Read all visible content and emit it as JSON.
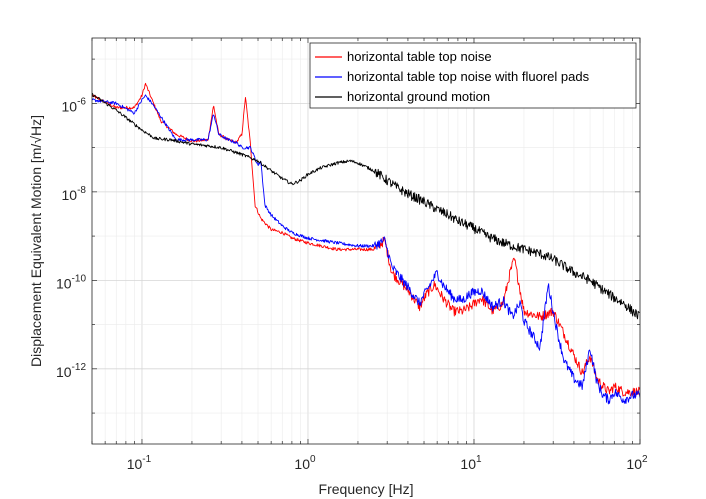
{
  "chart_data": {
    "type": "line",
    "scale": {
      "x": "log",
      "y": "log"
    },
    "xlabel": "Frequency [Hz]",
    "ylabel": "Displacement Equivalent Motion [m/√Hz]",
    "xlim": [
      0.05,
      100
    ],
    "ylim": [
      2e-14,
      3e-05
    ],
    "grid": true,
    "legend_position": "top-right",
    "x_ticks": [
      {
        "value": 0.1,
        "base": "10",
        "exp": "-1"
      },
      {
        "value": 1,
        "base": "10",
        "exp": "0"
      },
      {
        "value": 10,
        "base": "10",
        "exp": "1"
      },
      {
        "value": 100,
        "base": "10",
        "exp": "2"
      }
    ],
    "y_ticks": [
      {
        "value": 1e-12,
        "base": "10",
        "exp": "-12"
      },
      {
        "value": 1e-10,
        "base": "10",
        "exp": "-10"
      },
      {
        "value": 1e-08,
        "base": "10",
        "exp": "-8"
      },
      {
        "value": 1e-06,
        "base": "10",
        "exp": "-6"
      }
    ],
    "series": [
      {
        "name": "horizontal table top noise",
        "color": "#ff0000",
        "x": [
          0.05,
          0.07,
          0.09,
          0.1,
          0.105,
          0.115,
          0.13,
          0.16,
          0.2,
          0.25,
          0.27,
          0.29,
          0.33,
          0.37,
          0.4,
          0.42,
          0.45,
          0.48,
          0.52,
          0.6,
          0.7,
          0.8,
          1.0,
          1.5,
          2.0,
          2.5,
          2.9,
          3.2,
          4.0,
          4.7,
          5.2,
          5.8,
          6.5,
          7.5,
          8.5,
          9.5,
          11,
          13,
          15,
          16.5,
          17.5,
          18.5,
          20,
          25,
          30,
          35,
          40,
          45,
          50,
          55,
          60,
          65,
          70,
          80,
          90,
          100
        ],
        "y": [
          1.5e-06,
          8e-07,
          8e-07,
          1.5e-06,
          2.8e-06,
          1.2e-06,
          4e-07,
          2e-07,
          1.4e-07,
          1.5e-07,
          9e-07,
          2e-07,
          1.5e-07,
          1.3e-07,
          2e-07,
          1.4e-06,
          1.2e-07,
          5e-09,
          2.5e-09,
          1.4e-09,
          1.2e-09,
          9e-10,
          7e-10,
          5e-10,
          5e-10,
          5e-10,
          8e-10,
          1.5e-10,
          6e-11,
          2.5e-11,
          5e-11,
          8e-11,
          4e-11,
          2e-11,
          2e-11,
          2.5e-11,
          4e-11,
          2e-11,
          3e-11,
          1.5e-10,
          3e-10,
          1e-10,
          2e-11,
          1.5e-11,
          2e-11,
          6e-12,
          2e-12,
          8e-13,
          2e-12,
          6e-13,
          4e-13,
          3e-13,
          4e-13,
          3e-13,
          3e-13,
          3e-13
        ]
      },
      {
        "name": "horizontal table top noise with fluorel pads",
        "color": "#0000ff",
        "x": [
          0.05,
          0.07,
          0.09,
          0.1,
          0.105,
          0.115,
          0.13,
          0.16,
          0.2,
          0.25,
          0.27,
          0.29,
          0.33,
          0.37,
          0.4,
          0.45,
          0.5,
          0.52,
          0.55,
          0.6,
          0.7,
          0.8,
          1.0,
          1.5,
          2.0,
          2.5,
          2.9,
          3.2,
          4.0,
          4.7,
          5.2,
          6.0,
          6.5,
          7.5,
          8.5,
          9.5,
          11,
          13,
          15,
          17,
          19,
          20,
          25,
          28,
          30,
          32,
          35,
          40,
          45,
          50,
          55,
          60,
          65,
          70,
          80,
          90,
          100
        ],
        "y": [
          1.2e-06,
          1e-06,
          6e-07,
          1.2e-06,
          1.5e-06,
          1e-06,
          5e-07,
          1.5e-07,
          1.5e-07,
          1.5e-07,
          6e-07,
          2e-07,
          1.5e-07,
          1.3e-07,
          1e-07,
          1e-07,
          4e-08,
          5e-08,
          5e-09,
          3e-09,
          1.7e-09,
          1.2e-09,
          9e-10,
          7e-10,
          6e-10,
          6e-10,
          8e-10,
          2e-10,
          7e-11,
          3e-11,
          6e-11,
          1.5e-10,
          8e-11,
          4e-11,
          3.5e-11,
          5e-11,
          6e-11,
          2.5e-11,
          3.5e-11,
          1.5e-11,
          3e-11,
          1.2e-11,
          3e-12,
          8e-11,
          2e-11,
          6e-12,
          1.5e-12,
          6e-13,
          4e-13,
          3e-12,
          5e-13,
          2.5e-13,
          2e-13,
          3e-13,
          2e-13,
          2.5e-13,
          2.5e-13
        ]
      },
      {
        "name": "horizontal ground motion",
        "color": "#000000",
        "x": [
          0.05,
          0.07,
          0.1,
          0.12,
          0.15,
          0.2,
          0.25,
          0.3,
          0.4,
          0.5,
          0.6,
          0.7,
          0.8,
          0.9,
          1.0,
          1.2,
          1.5,
          1.8,
          2.0,
          2.5,
          3.0,
          3.5,
          4.0,
          5.0,
          6.0,
          7.0,
          8.0,
          10,
          12,
          15,
          20,
          25,
          30,
          40,
          50,
          60,
          70,
          80,
          90,
          100
        ],
        "y": [
          1.6e-06,
          7e-07,
          2.5e-07,
          1.6e-07,
          1.5e-07,
          1.2e-07,
          1.1e-07,
          1e-07,
          7e-08,
          5e-08,
          3e-08,
          2e-08,
          1.5e-08,
          1.8e-08,
          2.5e-08,
          3.5e-08,
          4.5e-08,
          5e-08,
          4.5e-08,
          3e-08,
          1.8e-08,
          1.2e-08,
          9e-09,
          6e-09,
          4e-09,
          3e-09,
          2.2e-09,
          1.5e-09,
          1e-09,
          7e-10,
          5e-10,
          4e-10,
          3e-10,
          1.5e-10,
          1e-10,
          6e-11,
          4e-11,
          3e-11,
          2e-11,
          1.5e-11
        ]
      }
    ]
  }
}
